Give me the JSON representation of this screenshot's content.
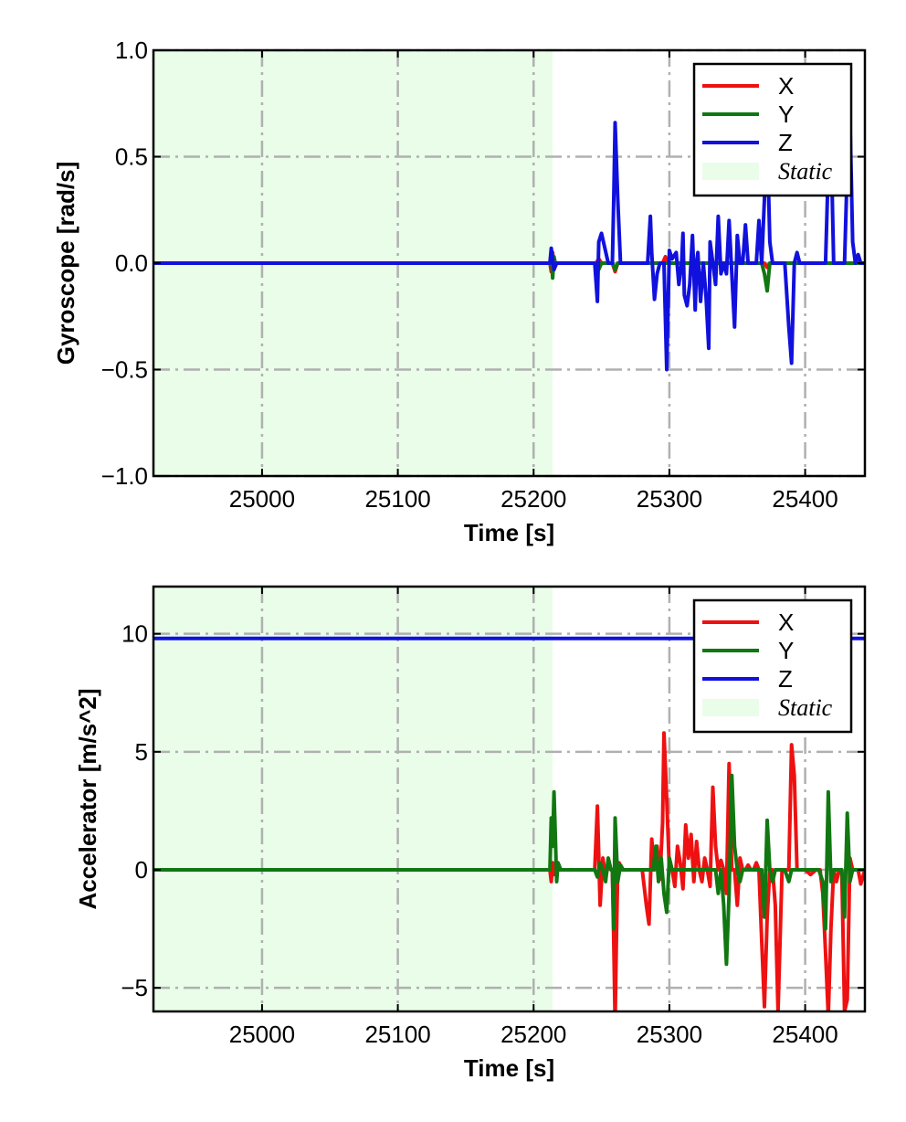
{
  "chart_data": [
    {
      "type": "line",
      "ylabel": "Gyroscope [rad/s]",
      "xlabel": "Time [s]",
      "xlim": [
        24920,
        25444
      ],
      "ylim": [
        -1.0,
        1.0
      ],
      "xticks": [
        25000,
        25100,
        25200,
        25300,
        25400
      ],
      "yticks": [
        -1.0,
        -0.5,
        0.0,
        0.5,
        1.0
      ],
      "ytick_labels": [
        "−1.0",
        "−0.5",
        "0.0",
        "0.5",
        "1.0"
      ],
      "grid": true,
      "legend_position": "top-right",
      "static_region": {
        "label": "Static",
        "x": [
          24920,
          25214
        ],
        "color": "#e9fde9"
      },
      "series": [
        {
          "name": "X",
          "color": "#ee1111",
          "x": [
            24920,
            25212,
            25213,
            25214,
            25215,
            25216,
            25246,
            25248,
            25250,
            25258,
            25260,
            25262,
            25295,
            25297,
            25299,
            25370,
            25372,
            25374,
            25444
          ],
          "y": [
            0.0,
            0.0,
            -0.04,
            0.05,
            -0.03,
            0.0,
            0.0,
            0.02,
            0.0,
            0.0,
            -0.04,
            0.0,
            0.0,
            0.03,
            0.0,
            0.0,
            -0.02,
            0.0,
            0.0
          ]
        },
        {
          "name": "Y",
          "color": "#117711",
          "x": [
            24920,
            25212,
            25213,
            25214,
            25215,
            25216,
            25246,
            25248,
            25250,
            25258,
            25260,
            25262,
            25368,
            25370,
            25372,
            25374,
            25444
          ],
          "y": [
            0.0,
            0.0,
            0.05,
            -0.07,
            0.03,
            0.0,
            0.0,
            -0.03,
            0.0,
            0.0,
            -0.03,
            0.0,
            0.0,
            -0.05,
            -0.13,
            0.0,
            0.0
          ]
        },
        {
          "name": "Z",
          "color": "#1111dd",
          "x": [
            24920,
            25212,
            25213,
            25215,
            25217,
            25245,
            25247,
            25248,
            25250,
            25255,
            25258,
            25259,
            25260,
            25262,
            25264,
            25266,
            25284,
            25286,
            25287,
            25289,
            25291,
            25293,
            25296,
            25298,
            25300,
            25302,
            25305,
            25307,
            25309,
            25310,
            25311,
            25313,
            25315,
            25317,
            25319,
            25320,
            25321,
            25323,
            25325,
            25327,
            25329,
            25330,
            25332,
            25334,
            25336,
            25338,
            25340,
            25342,
            25344,
            25346,
            25348,
            25350,
            25352,
            25354,
            25356,
            25358,
            25360,
            25362,
            25364,
            25366,
            25368,
            25370,
            25372,
            25374,
            25376,
            25378,
            25380,
            25385,
            25388,
            25390,
            25392,
            25394,
            25396,
            25398,
            25400,
            25405,
            25410,
            25413,
            25415,
            25417,
            25419,
            25421,
            25424,
            25427,
            25429,
            25431,
            25433,
            25435,
            25437,
            25439,
            25441,
            25444
          ],
          "y": [
            0.0,
            0.0,
            0.07,
            -0.03,
            0.0,
            0.0,
            -0.18,
            0.1,
            0.14,
            0.0,
            0.0,
            0.3,
            0.66,
            0.3,
            0.0,
            0.0,
            0.0,
            0.22,
            0.05,
            -0.17,
            -0.05,
            0.0,
            0.0,
            -0.5,
            0.06,
            0.02,
            0.05,
            -0.1,
            0.0,
            0.14,
            -0.15,
            -0.2,
            -0.1,
            0.13,
            -0.22,
            0.0,
            0.05,
            -0.18,
            0.0,
            -0.16,
            -0.4,
            0.1,
            0.0,
            -0.1,
            0.22,
            -0.05,
            0.0,
            -0.05,
            0.2,
            -0.05,
            -0.3,
            0.13,
            0.0,
            0.0,
            0.18,
            0.0,
            0.0,
            0.0,
            0.0,
            0.2,
            0.0,
            0.3,
            0.6,
            0.1,
            0.0,
            0.0,
            0.0,
            0.0,
            -0.3,
            -0.47,
            0.0,
            0.05,
            0.0,
            0.0,
            0.0,
            0.0,
            0.0,
            0.0,
            0.0,
            0.45,
            0.6,
            0.0,
            0.0,
            0.0,
            0.0,
            0.45,
            0.7,
            0.1,
            0.0,
            0.04,
            0.0,
            0.0
          ]
        }
      ]
    },
    {
      "type": "line",
      "ylabel": "Accelerator [m/s^2]",
      "xlabel": "Time [s]",
      "xlim": [
        24920,
        25444
      ],
      "ylim": [
        -6,
        12
      ],
      "xticks": [
        25000,
        25100,
        25200,
        25300,
        25400
      ],
      "yticks": [
        -5,
        0,
        5,
        10
      ],
      "ytick_labels": [
        "−5",
        "0",
        "5",
        "10"
      ],
      "grid": true,
      "legend_position": "top-right",
      "static_region": {
        "label": "Static",
        "x": [
          24920,
          25214
        ],
        "color": "#e9fde9"
      },
      "series": [
        {
          "name": "X",
          "color": "#ee1111",
          "x": [
            24920,
            25212,
            25213,
            25214,
            25215,
            25216,
            25240,
            25245,
            25247,
            25249,
            25251,
            25253,
            25255,
            25257,
            25258,
            25259,
            25260,
            25261,
            25262,
            25263,
            25265,
            25270,
            25275,
            25280,
            25283,
            25285,
            25287,
            25289,
            25291,
            25293,
            25295,
            25296,
            25298,
            25300,
            25302,
            25304,
            25306,
            25308,
            25310,
            25312,
            25314,
            25316,
            25318,
            25320,
            25322,
            25324,
            25326,
            25328,
            25330,
            25332,
            25334,
            25336,
            25338,
            25340,
            25342,
            25344,
            25346,
            25348,
            25350,
            25352,
            25354,
            25356,
            25358,
            25360,
            25362,
            25364,
            25366,
            25368,
            25370,
            25372,
            25374,
            25376,
            25378,
            25380,
            25383,
            25386,
            25388,
            25390,
            25392,
            25394,
            25396,
            25398,
            25400,
            25404,
            25408,
            25411,
            25413,
            25415,
            25417,
            25419,
            25421,
            25423,
            25425,
            25427,
            25429,
            25431,
            25433,
            25435,
            25437,
            25439,
            25441,
            25444
          ],
          "y": [
            0.0,
            0.0,
            -0.5,
            0.3,
            -0.2,
            0.0,
            0.0,
            0.0,
            2.7,
            -1.5,
            0.5,
            -0.3,
            0.2,
            0.0,
            0.0,
            -3.0,
            -6.5,
            -3.0,
            0.0,
            0.3,
            0.0,
            0.0,
            0.0,
            0.0,
            -1.5,
            -2.3,
            1.3,
            0.0,
            1.0,
            -0.4,
            2.0,
            5.8,
            3.0,
            0.0,
            0.0,
            -0.7,
            1.0,
            0.3,
            -0.8,
            1.9,
            0.5,
            1.5,
            -0.5,
            1.2,
            0.0,
            -0.5,
            0.5,
            0.0,
            -0.7,
            3.5,
            1.0,
            0.0,
            0.4,
            0.0,
            -1.0,
            4.5,
            0.0,
            0.0,
            -1.5,
            0.5,
            0.0,
            0.0,
            0.2,
            0.0,
            0.0,
            0.3,
            0.0,
            -3.0,
            -5.8,
            -2.0,
            0.0,
            0.0,
            -1.5,
            -6.0,
            0.0,
            0.0,
            0.0,
            5.3,
            4.0,
            0.0,
            0.0,
            0.0,
            0.0,
            -0.2,
            0.0,
            0.0,
            -1.0,
            -3.5,
            -6.2,
            -2.5,
            0.0,
            -0.5,
            0.0,
            0.0,
            -6.0,
            -5.5,
            0.5,
            0.0,
            0.0,
            0.0,
            -0.6,
            0.0
          ]
        },
        {
          "name": "Y",
          "color": "#117711",
          "x": [
            24920,
            25212,
            25213,
            25214,
            25215,
            25216,
            25217,
            25218,
            25220,
            25245,
            25247,
            25249,
            25251,
            25253,
            25255,
            25257,
            25258,
            25259,
            25260,
            25262,
            25264,
            25266,
            25270,
            25280,
            25288,
            25290,
            25292,
            25294,
            25296,
            25298,
            25300,
            25302,
            25304,
            25310,
            25320,
            25325,
            25328,
            25330,
            25332,
            25334,
            25336,
            25338,
            25340,
            25342,
            25344,
            25346,
            25348,
            25350,
            25352,
            25354,
            25356,
            25358,
            25360,
            25365,
            25368,
            25370,
            25372,
            25374,
            25376,
            25378,
            25380,
            25385,
            25388,
            25390,
            25392,
            25394,
            25396,
            25398,
            25400,
            25405,
            25410,
            25413,
            25415,
            25417,
            25419,
            25421,
            25424,
            25427,
            25429,
            25431,
            25433,
            25435,
            25437,
            25439,
            25441,
            25444
          ],
          "y": [
            0.0,
            0.0,
            2.2,
            1.0,
            3.3,
            1.5,
            -0.5,
            0.3,
            0.0,
            0.0,
            -0.3,
            0.3,
            0.0,
            -0.5,
            0.5,
            0.0,
            0.0,
            -2.5,
            2.2,
            -0.5,
            0.2,
            0.0,
            0.0,
            0.0,
            0.0,
            1.0,
            -0.5,
            0.5,
            -1.0,
            -1.8,
            0.5,
            0.0,
            0.0,
            0.0,
            0.0,
            0.0,
            0.0,
            0.0,
            0.0,
            0.0,
            -1.0,
            0.0,
            -1.5,
            -4.0,
            -1.0,
            4.0,
            1.0,
            0.0,
            -0.5,
            0.0,
            0.0,
            0.0,
            0.0,
            0.0,
            0.0,
            -2.0,
            2.1,
            0.0,
            -0.5,
            0.0,
            0.0,
            0.0,
            -0.5,
            0.0,
            0.0,
            0.0,
            0.0,
            0.0,
            0.0,
            0.0,
            0.0,
            -0.5,
            -2.5,
            3.3,
            -0.5,
            0.0,
            0.0,
            0.0,
            -2.0,
            2.4,
            -0.5,
            0.0,
            0.0,
            0.0,
            0.0,
            0.0
          ]
        },
        {
          "name": "Z",
          "color": "#1111dd",
          "x": [
            24920,
            25444
          ],
          "y": [
            9.8,
            9.8
          ]
        }
      ]
    }
  ]
}
